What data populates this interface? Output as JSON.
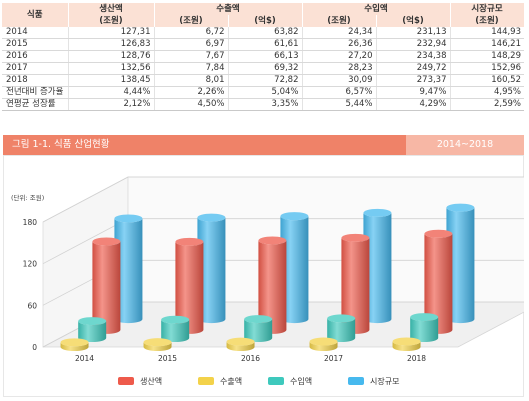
{
  "table": {
    "headers": {
      "corner": "식품",
      "groups": [
        "생산액",
        "수출액",
        "수입액",
        "시장규모"
      ],
      "units": [
        "(조원)",
        "(조원)",
        "(억$)",
        "(조원)",
        "(억$)",
        "(조원)"
      ]
    },
    "rows": [
      {
        "label": "2014",
        "values": [
          "127,31",
          "6,72",
          "63,82",
          "24,34",
          "231,13",
          "144,93"
        ]
      },
      {
        "label": "2015",
        "values": [
          "126,83",
          "6,97",
          "61,61",
          "26,36",
          "232,94",
          "146,21"
        ]
      },
      {
        "label": "2016",
        "values": [
          "128,76",
          "7,67",
          "66,13",
          "27,20",
          "234,38",
          "148,29"
        ]
      },
      {
        "label": "2017",
        "values": [
          "132,56",
          "7,84",
          "69,32",
          "28,23",
          "249,72",
          "152,96"
        ]
      },
      {
        "label": "2018",
        "values": [
          "138,45",
          "8,01",
          "72,82",
          "30,09",
          "273,37",
          "160,52"
        ]
      },
      {
        "label": "전년대비 증가율",
        "values": [
          "4,44%",
          "2,26%",
          "5,04%",
          "6,57%",
          "9,47%",
          "4,95%"
        ]
      },
      {
        "label": "연평균 성장률",
        "values": [
          "2,12%",
          "4,50%",
          "3,35%",
          "5,44%",
          "4,29%",
          "2,59%"
        ]
      }
    ]
  },
  "figure": {
    "title": "그림 1-1. 식품 산업현황",
    "period": "2014~2018"
  },
  "colors": {
    "생산액": "#ee5a4b",
    "수출액": "#f3d24a",
    "수입액": "#3ec9bd",
    "시장규모": "#47b9ee",
    "banner": "#ef8268"
  },
  "chart_data": {
    "type": "bar",
    "unit_label": "(단위: 조원)",
    "categories": [
      "2014",
      "2015",
      "2016",
      "2017",
      "2018"
    ],
    "series": [
      {
        "name": "생산액",
        "values": [
          127.31,
          126.83,
          128.76,
          132.56,
          138.45
        ]
      },
      {
        "name": "수출액",
        "values": [
          6.72,
          6.97,
          7.67,
          7.84,
          8.01
        ]
      },
      {
        "name": "수입액",
        "values": [
          24.34,
          26.36,
          27.2,
          28.23,
          30.09
        ]
      },
      {
        "name": "시장규모",
        "values": [
          144.93,
          146.21,
          148.29,
          152.96,
          160.52
        ]
      }
    ],
    "yticks": [
      0,
      60,
      120,
      180
    ],
    "ylim": [
      0,
      180
    ],
    "legend_position": "bottom",
    "style": "3d-cylinder"
  }
}
